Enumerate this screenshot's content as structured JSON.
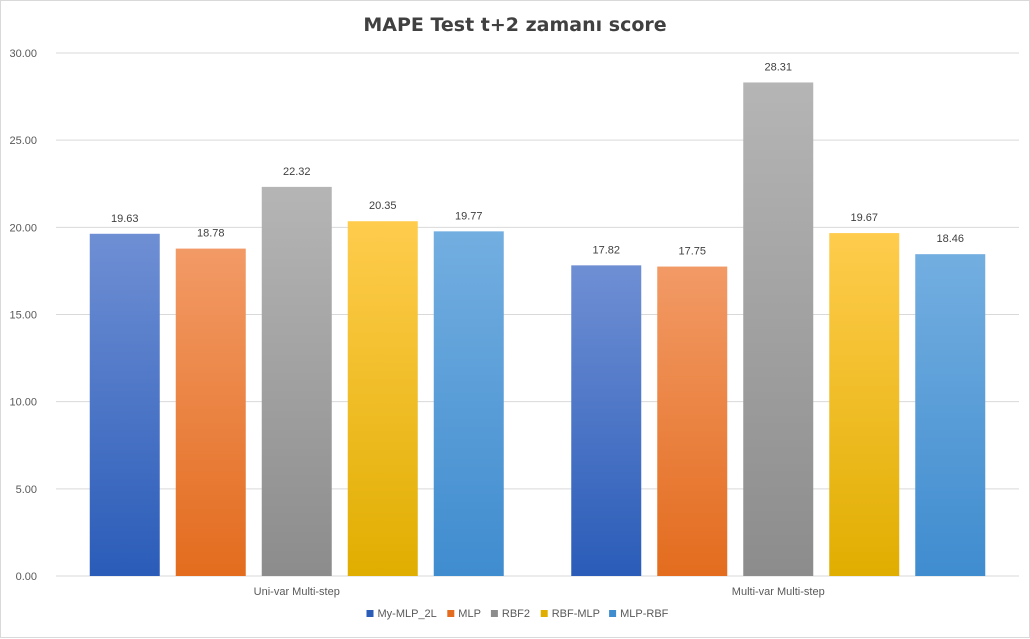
{
  "chart_data": {
    "type": "bar",
    "title": "MAPE Test t+2 zamanı score",
    "xlabel": "",
    "ylabel": "",
    "ylim": [
      0,
      30
    ],
    "yticks": [
      "0.00",
      "5.00",
      "10.00",
      "15.00",
      "20.00",
      "25.00",
      "30.00"
    ],
    "ytick_values": [
      0,
      5,
      10,
      15,
      20,
      25,
      30
    ],
    "categories": [
      "Uni-var Multi-step",
      "Multi-var Multi-step"
    ],
    "series": [
      {
        "name": "My-MLP_2L",
        "values": [
          19.63,
          17.82
        ],
        "labels": [
          "19.63",
          "17.82"
        ],
        "color_top": "#6f8fd4",
        "color_bottom": "#2a5cb8"
      },
      {
        "name": "MLP",
        "values": [
          18.78,
          17.75
        ],
        "labels": [
          "18.78",
          "17.75"
        ],
        "color_top": "#f29a66",
        "color_bottom": "#e36c1e"
      },
      {
        "name": "RBF2",
        "values": [
          22.32,
          28.31
        ],
        "labels": [
          "22.32",
          "28.31"
        ],
        "color_top": "#b5b5b5",
        "color_bottom": "#8c8c8c"
      },
      {
        "name": "RBF-MLP",
        "values": [
          20.35,
          19.67
        ],
        "labels": [
          "20.35",
          "19.67"
        ],
        "color_top": "#ffcc4d",
        "color_bottom": "#e0ae00"
      },
      {
        "name": "MLP-RBF",
        "values": [
          19.77,
          18.46
        ],
        "labels": [
          "19.77",
          "18.46"
        ],
        "color_top": "#73aee0",
        "color_bottom": "#3f8ccf"
      }
    ],
    "legend_position": "bottom",
    "grid": true
  }
}
